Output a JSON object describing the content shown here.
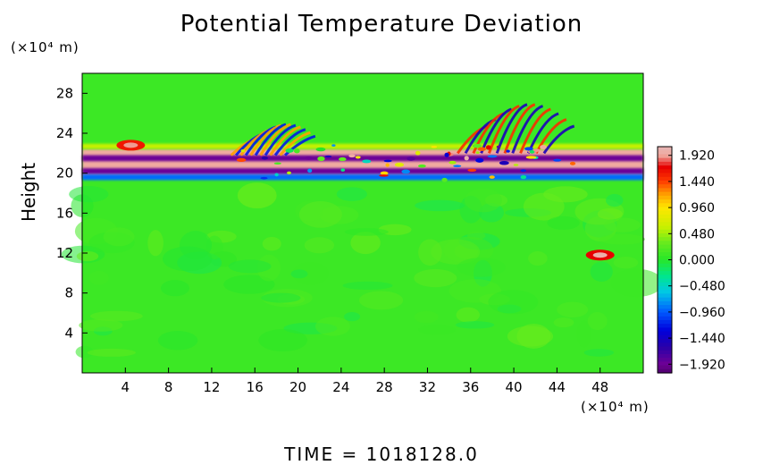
{
  "chart_data": {
    "type": "heatmap",
    "title": "Potential Temperature Deviation",
    "ylabel": "Height",
    "xlabel": "",
    "x_unit": "(×10⁴ m)",
    "y_unit": "(×10⁴ m)",
    "xlim": [
      0,
      52
    ],
    "ylim": [
      0,
      30
    ],
    "x_ticks": [
      4,
      8,
      12,
      16,
      20,
      24,
      28,
      32,
      36,
      40,
      44,
      48
    ],
    "y_ticks": [
      4,
      8,
      12,
      16,
      20,
      24,
      28
    ],
    "colorbar": {
      "range": [
        -2.08,
        2.08
      ],
      "labels": [
        "1.920",
        "1.440",
        "0.960",
        "0.480",
        "0.000",
        "−0.480",
        "−0.960",
        "−1.440",
        "−1.920"
      ],
      "label_values": [
        1.92,
        1.44,
        0.96,
        0.48,
        0.0,
        -0.48,
        -0.96,
        -1.44,
        -1.92
      ]
    },
    "background_value": 0.1,
    "features": [
      {
        "kind": "band",
        "y_center": 21.0,
        "y_halfwidth": 1.4,
        "value": 1.92
      },
      {
        "kind": "band",
        "y_center": 21.5,
        "y_halfwidth": 0.3,
        "value": -1.9
      },
      {
        "kind": "band",
        "y_center": 20.2,
        "y_halfwidth": 0.3,
        "value": -1.9
      },
      {
        "kind": "band",
        "y_center": 22.7,
        "y_halfwidth": 0.25,
        "value": 0.6
      },
      {
        "kind": "band",
        "y_center": 19.6,
        "y_halfwidth": 0.3,
        "value": -0.9
      },
      {
        "kind": "blob",
        "x": 4.5,
        "y": 22.8,
        "value": 1.6
      },
      {
        "kind": "blob",
        "x": 48.0,
        "y": 11.8,
        "value": 1.7
      },
      {
        "kind": "waves",
        "x_range": [
          36,
          44
        ],
        "y_range": [
          22.5,
          26.5
        ],
        "value": 1.5
      },
      {
        "kind": "waves",
        "x_range": [
          15,
          20
        ],
        "y_range": [
          22.3,
          24.5
        ],
        "value": 1.2
      }
    ],
    "grid": false
  },
  "time_text": "TIME  =  1018128.0"
}
